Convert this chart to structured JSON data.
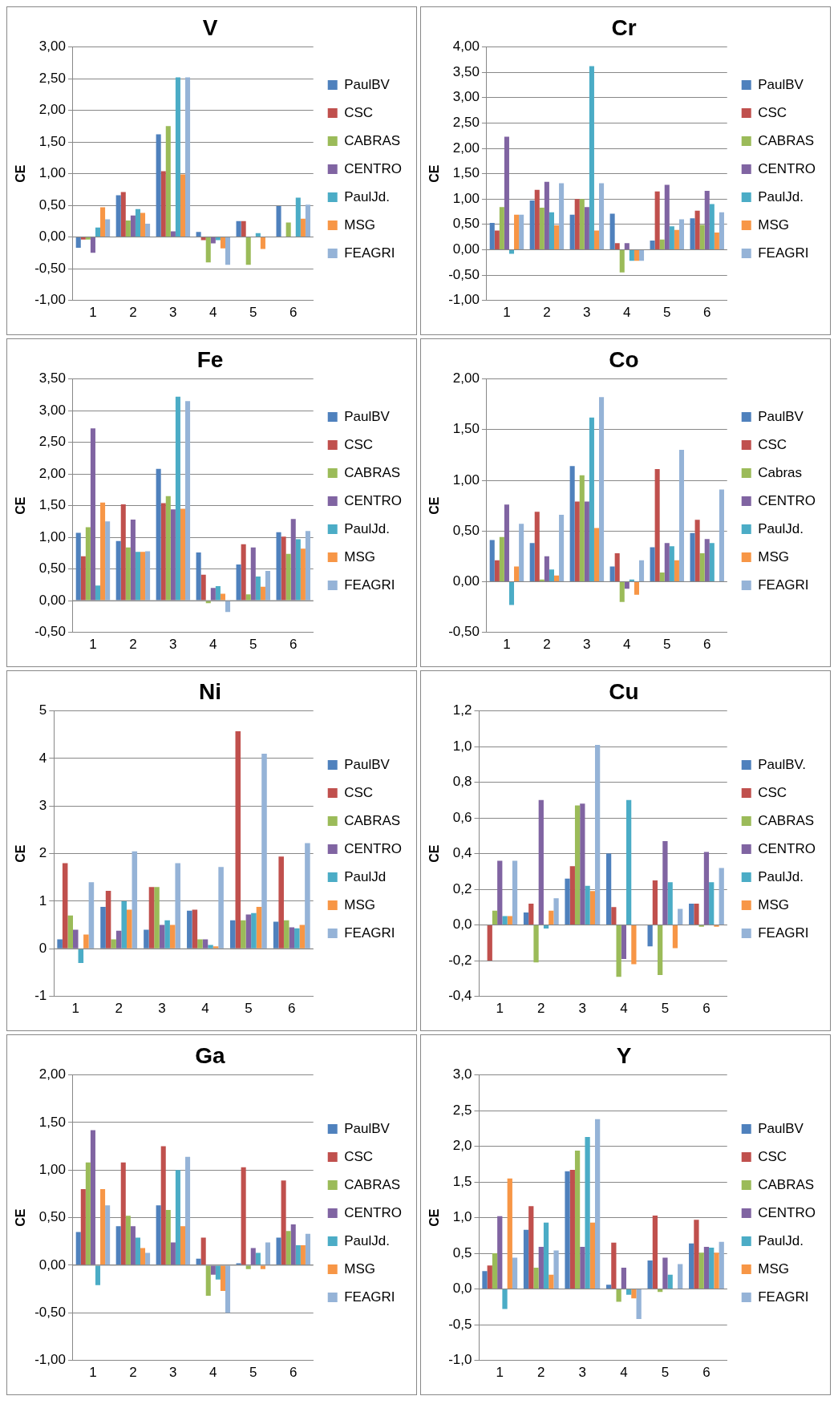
{
  "chart_data": [
    {
      "type": "bar",
      "title": "V",
      "ylabel": "CE",
      "categories": [
        "1",
        "2",
        "3",
        "4",
        "5",
        "6"
      ],
      "ylim": [
        -1,
        3
      ],
      "yticks": [
        {
          "value": -1,
          "label": "-1,00"
        },
        {
          "value": -0.5,
          "label": "-0,50"
        },
        {
          "value": 0,
          "label": "0,00"
        },
        {
          "value": 0.5,
          "label": "0,50"
        },
        {
          "value": 1,
          "label": "1,00"
        },
        {
          "value": 1.5,
          "label": "1,50"
        },
        {
          "value": 2,
          "label": "2,00"
        },
        {
          "value": 2.5,
          "label": "2,50"
        },
        {
          "value": 3,
          "label": "3,00"
        }
      ],
      "grid": "y",
      "legend": "right",
      "series": [
        {
          "name": "PaulBV",
          "color": "#4f81bd",
          "values": [
            -0.17,
            0.66,
            1.62,
            0.08,
            0.25,
            0.49
          ]
        },
        {
          "name": "CSC",
          "color": "#c0504d",
          "values": [
            -0.04,
            0.71,
            1.04,
            -0.05,
            0.25,
            0
          ]
        },
        {
          "name": "CABRAS",
          "color": "#9bbb59",
          "values": [
            -0.04,
            0.26,
            1.75,
            -0.4,
            -0.44,
            0.23
          ]
        },
        {
          "name": "CENTRO",
          "color": "#8064a2",
          "values": [
            -0.25,
            0.34,
            0.09,
            -0.1,
            0,
            0
          ]
        },
        {
          "name": "PaulJd.",
          "color": "#4bacc6",
          "values": [
            0.15,
            0.44,
            2.52,
            -0.05,
            0.06,
            0.62
          ]
        },
        {
          "name": "MSG",
          "color": "#f79646",
          "values": [
            0.47,
            0.38,
            0.99,
            -0.18,
            -0.19,
            0.29
          ]
        },
        {
          "name": "FEAGRI",
          "color": "#95b3d7",
          "values": [
            0.28,
            0.21,
            2.52,
            -0.44,
            0,
            0.51
          ]
        }
      ]
    },
    {
      "type": "bar",
      "title": "Cr",
      "ylabel": "CE",
      "categories": [
        "1",
        "2",
        "3",
        "4",
        "5",
        "6"
      ],
      "ylim": [
        -1,
        4
      ],
      "yticks": [
        {
          "value": -1,
          "label": "-1,00"
        },
        {
          "value": -0.5,
          "label": "-0,50"
        },
        {
          "value": 0,
          "label": "0,00"
        },
        {
          "value": 0.5,
          "label": "0,50"
        },
        {
          "value": 1,
          "label": "1,00"
        },
        {
          "value": 1.5,
          "label": "1,50"
        },
        {
          "value": 2,
          "label": "2,00"
        },
        {
          "value": 2.5,
          "label": "2,50"
        },
        {
          "value": 3,
          "label": "3,00"
        },
        {
          "value": 3.5,
          "label": "3,50"
        },
        {
          "value": 4,
          "label": "4,00"
        }
      ],
      "grid": "y",
      "legend": "right",
      "series": [
        {
          "name": "PaulBV",
          "color": "#4f81bd",
          "values": [
            0.53,
            0.97,
            0.69,
            0.71,
            0.18,
            0.62
          ]
        },
        {
          "name": "CSC",
          "color": "#c0504d",
          "values": [
            0.38,
            1.18,
            1.0,
            0.13,
            1.15,
            0.77
          ]
        },
        {
          "name": "CABRAS",
          "color": "#9bbb59",
          "values": [
            0.84,
            0.83,
            1.0,
            -0.45,
            0.2,
            0.49
          ]
        },
        {
          "name": "CENTRO",
          "color": "#8064a2",
          "values": [
            2.23,
            1.34,
            0.84,
            0.13,
            1.28,
            1.16
          ]
        },
        {
          "name": "PaulJd.",
          "color": "#4bacc6",
          "values": [
            -0.08,
            0.74,
            3.62,
            -0.22,
            0.46,
            0.9
          ]
        },
        {
          "name": "MSG",
          "color": "#f79646",
          "values": [
            0.69,
            0.48,
            0.38,
            -0.22,
            0.39,
            0.34
          ]
        },
        {
          "name": "FEAGRI",
          "color": "#95b3d7",
          "values": [
            0.69,
            1.31,
            1.31,
            -0.22,
            0.6,
            0.74
          ]
        }
      ]
    },
    {
      "type": "bar",
      "title": "Fe",
      "ylabel": "CE",
      "categories": [
        "1",
        "2",
        "3",
        "4",
        "5",
        "6"
      ],
      "ylim": [
        -0.5,
        3.5
      ],
      "yticks": [
        {
          "value": -0.5,
          "label": "-0,50"
        },
        {
          "value": 0,
          "label": "0,00"
        },
        {
          "value": 0.5,
          "label": "0,50"
        },
        {
          "value": 1,
          "label": "1,00"
        },
        {
          "value": 1.5,
          "label": "1,50"
        },
        {
          "value": 2,
          "label": "2,00"
        },
        {
          "value": 2.5,
          "label": "2,50"
        },
        {
          "value": 3,
          "label": "3,00"
        },
        {
          "value": 3.5,
          "label": "3,50"
        }
      ],
      "grid": "y",
      "legend": "right",
      "series": [
        {
          "name": "PaulBV",
          "color": "#4f81bd",
          "values": [
            1.07,
            0.94,
            2.08,
            0.76,
            0.57,
            1.08
          ]
        },
        {
          "name": "CSC",
          "color": "#c0504d",
          "values": [
            0.7,
            1.52,
            1.54,
            0.41,
            0.89,
            1.01
          ]
        },
        {
          "name": "CABRAS",
          "color": "#9bbb59",
          "values": [
            1.16,
            0.84,
            1.65,
            -0.04,
            0.1,
            0.74
          ]
        },
        {
          "name": "CENTRO",
          "color": "#8064a2",
          "values": [
            2.72,
            1.28,
            1.44,
            0.2,
            0.84,
            1.29
          ]
        },
        {
          "name": "PaulJd.",
          "color": "#4bacc6",
          "values": [
            0.24,
            0.77,
            3.22,
            0.23,
            0.38,
            0.97
          ]
        },
        {
          "name": "MSG",
          "color": "#f79646",
          "values": [
            1.55,
            0.77,
            1.45,
            0.11,
            0.22,
            0.82
          ]
        },
        {
          "name": "FEAGRI",
          "color": "#95b3d7",
          "values": [
            1.25,
            0.78,
            3.15,
            -0.18,
            0.47,
            1.1
          ]
        }
      ]
    },
    {
      "type": "bar",
      "title": "Co",
      "ylabel": "CE",
      "categories": [
        "1",
        "2",
        "3",
        "4",
        "5",
        "6"
      ],
      "ylim": [
        -0.5,
        2
      ],
      "yticks": [
        {
          "value": -0.5,
          "label": "-0,50"
        },
        {
          "value": 0,
          "label": "0,00"
        },
        {
          "value": 0.5,
          "label": "0,50"
        },
        {
          "value": 1,
          "label": "1,00"
        },
        {
          "value": 1.5,
          "label": "1,50"
        },
        {
          "value": 2,
          "label": "2,00"
        }
      ],
      "grid": "y",
      "legend": "right",
      "series": [
        {
          "name": "PaulBV",
          "color": "#4f81bd",
          "values": [
            0.41,
            0.38,
            1.14,
            0.15,
            0.34,
            0.48
          ]
        },
        {
          "name": "CSC",
          "color": "#c0504d",
          "values": [
            0.21,
            0.69,
            0.79,
            0.28,
            1.11,
            0.61
          ]
        },
        {
          "name": "Cabras",
          "color": "#9bbb59",
          "values": [
            0.44,
            0.02,
            1.05,
            -0.2,
            0.09,
            0.28
          ]
        },
        {
          "name": "CENTRO",
          "color": "#8064a2",
          "values": [
            0.76,
            0.25,
            0.79,
            -0.07,
            0.38,
            0.42
          ]
        },
        {
          "name": "PaulJd.",
          "color": "#4bacc6",
          "values": [
            -0.23,
            0.12,
            1.62,
            0.02,
            0.35,
            0.38
          ]
        },
        {
          "name": "MSG",
          "color": "#f79646",
          "values": [
            0.15,
            0.06,
            0.53,
            -0.13,
            0.21,
            0
          ]
        },
        {
          "name": "FEAGRI",
          "color": "#95b3d7",
          "values": [
            0.57,
            0.66,
            1.82,
            0.21,
            1.3,
            0.91
          ]
        }
      ]
    },
    {
      "type": "bar",
      "title": "Ni",
      "ylabel": "CE",
      "categories": [
        "1",
        "2",
        "3",
        "4",
        "5",
        "6"
      ],
      "ylim": [
        -1,
        5
      ],
      "yticks": [
        -1,
        0,
        1,
        2,
        3,
        4,
        5
      ],
      "grid": "y",
      "legend": "right",
      "series": [
        {
          "name": "PaulBV",
          "color": "#4f81bd",
          "values": [
            0.2,
            0.88,
            0.4,
            0.8,
            0.6,
            0.57
          ]
        },
        {
          "name": "CSC",
          "color": "#c0504d",
          "values": [
            1.8,
            1.22,
            1.3,
            0.82,
            4.57,
            1.94
          ]
        },
        {
          "name": "CABRAS",
          "color": "#9bbb59",
          "values": [
            0.7,
            0.2,
            1.3,
            0.2,
            0.6,
            0.6
          ]
        },
        {
          "name": "CENTRO",
          "color": "#8064a2",
          "values": [
            0.4,
            0.38,
            0.5,
            0.2,
            0.72,
            0.45
          ]
        },
        {
          "name": "PaulJd",
          "color": "#4bacc6",
          "values": [
            -0.3,
            1.0,
            0.6,
            0.08,
            0.75,
            0.43
          ]
        },
        {
          "name": "MSG",
          "color": "#f79646",
          "values": [
            0.3,
            0.82,
            0.5,
            0.05,
            0.88,
            0.5
          ]
        },
        {
          "name": "FEAGRI",
          "color": "#95b3d7",
          "values": [
            1.4,
            2.05,
            1.8,
            1.72,
            4.1,
            2.22
          ]
        }
      ]
    },
    {
      "type": "bar",
      "title": "Cu",
      "ylabel": "CE",
      "categories": [
        "1",
        "2",
        "3",
        "4",
        "5",
        "6"
      ],
      "ylim": [
        -0.4,
        1.2
      ],
      "yticks": [
        {
          "value": -0.4,
          "label": "-0,4"
        },
        {
          "value": -0.2,
          "label": "-0,2"
        },
        {
          "value": 0,
          "label": "0,0"
        },
        {
          "value": 0.2,
          "label": "0,2"
        },
        {
          "value": 0.4,
          "label": "0,4"
        },
        {
          "value": 0.6,
          "label": "0,6"
        },
        {
          "value": 0.8,
          "label": "0,8"
        },
        {
          "value": 1,
          "label": "1,0"
        },
        {
          "value": 1.2,
          "label": "1,2"
        }
      ],
      "grid": "y",
      "legend": "right",
      "series": [
        {
          "name": "PaulBV.",
          "color": "#4f81bd",
          "values": [
            0,
            0.07,
            0.26,
            0.4,
            -0.12,
            0.12
          ]
        },
        {
          "name": "CSC",
          "color": "#c0504d",
          "values": [
            -0.2,
            0.12,
            0.33,
            0.1,
            0.25,
            0.12
          ]
        },
        {
          "name": "CABRAS",
          "color": "#9bbb59",
          "values": [
            0.08,
            -0.21,
            0.67,
            -0.29,
            -0.28,
            -0.01
          ]
        },
        {
          "name": "CENTRO",
          "color": "#8064a2",
          "values": [
            0.36,
            0.7,
            0.68,
            -0.19,
            0.47,
            0.41
          ]
        },
        {
          "name": "PaulJd.",
          "color": "#4bacc6",
          "values": [
            0.05,
            -0.02,
            0.22,
            0.7,
            0.24,
            0.24
          ]
        },
        {
          "name": "MSG",
          "color": "#f79646",
          "values": [
            0.05,
            0.08,
            0.19,
            -0.22,
            -0.13,
            -0.01
          ]
        },
        {
          "name": "FEAGRI",
          "color": "#95b3d7",
          "values": [
            0.36,
            0.15,
            1.01,
            0,
            0.09,
            0.32
          ]
        }
      ]
    },
    {
      "type": "bar",
      "title": "Ga",
      "ylabel": "CE",
      "categories": [
        "1",
        "2",
        "3",
        "4",
        "5",
        "6"
      ],
      "ylim": [
        -1,
        2
      ],
      "yticks": [
        {
          "value": -1,
          "label": "-1,00"
        },
        {
          "value": -0.5,
          "label": "-0,50"
        },
        {
          "value": 0,
          "label": "0,00"
        },
        {
          "value": 0.5,
          "label": "0,50"
        },
        {
          "value": 1,
          "label": "1,00"
        },
        {
          "value": 1.5,
          "label": "1,50"
        },
        {
          "value": 2,
          "label": "2,00"
        }
      ],
      "grid": "y",
      "legend": "right",
      "series": [
        {
          "name": "PaulBV",
          "color": "#4f81bd",
          "values": [
            0.35,
            0.41,
            0.63,
            0.07,
            0.02,
            0.29
          ]
        },
        {
          "name": "CSC",
          "color": "#c0504d",
          "values": [
            0.8,
            1.08,
            1.25,
            0.29,
            1.03,
            0.89
          ]
        },
        {
          "name": "CABRAS",
          "color": "#9bbb59",
          "values": [
            1.08,
            0.52,
            0.58,
            -0.32,
            -0.04,
            0.36
          ]
        },
        {
          "name": "CENTRO",
          "color": "#8064a2",
          "values": [
            1.42,
            0.41,
            0.24,
            -0.1,
            0.18,
            0.43
          ]
        },
        {
          "name": "PaulJd.",
          "color": "#4bacc6",
          "values": [
            -0.21,
            0.29,
            1.0,
            -0.15,
            0.13,
            0.21
          ]
        },
        {
          "name": "MSG",
          "color": "#f79646",
          "values": [
            0.8,
            0.18,
            0.41,
            -0.27,
            -0.04,
            0.21
          ]
        },
        {
          "name": "FEAGRI",
          "color": "#95b3d7",
          "values": [
            0.63,
            0.13,
            1.14,
            -0.5,
            0.24,
            0.33
          ]
        }
      ]
    },
    {
      "type": "bar",
      "title": "Y",
      "ylabel": "CE",
      "categories": [
        "1",
        "2",
        "3",
        "4",
        "5",
        "6"
      ],
      "ylim": [
        -1,
        3
      ],
      "yticks": [
        {
          "value": -1,
          "label": "-1,0"
        },
        {
          "value": -0.5,
          "label": "-0,5"
        },
        {
          "value": 0,
          "label": "0,0"
        },
        {
          "value": 0.5,
          "label": "0,5"
        },
        {
          "value": 1,
          "label": "1,0"
        },
        {
          "value": 1.5,
          "label": "1,5"
        },
        {
          "value": 2,
          "label": "2,0"
        },
        {
          "value": 2.5,
          "label": "2,5"
        },
        {
          "value": 3,
          "label": "3,0"
        }
      ],
      "grid": "y",
      "legend": "right",
      "series": [
        {
          "name": "PaulBV",
          "color": "#4f81bd",
          "values": [
            0.25,
            0.83,
            1.65,
            0.06,
            0.4,
            0.64
          ]
        },
        {
          "name": "CSC",
          "color": "#c0504d",
          "values": [
            0.33,
            1.16,
            1.67,
            0.65,
            1.03,
            0.97
          ]
        },
        {
          "name": "CABRAS",
          "color": "#9bbb59",
          "values": [
            0.5,
            0.3,
            1.94,
            -0.18,
            -0.04,
            0.51
          ]
        },
        {
          "name": "CENTRO",
          "color": "#8064a2",
          "values": [
            1.02,
            0.59,
            0.59,
            0.3,
            0.44,
            0.59
          ]
        },
        {
          "name": "PaulJd.",
          "color": "#4bacc6",
          "values": [
            -0.28,
            0.93,
            2.13,
            -0.08,
            0.2,
            0.58
          ]
        },
        {
          "name": "MSG",
          "color": "#f79646",
          "values": [
            1.55,
            0.2,
            0.93,
            -0.13,
            0,
            0.51
          ]
        },
        {
          "name": "FEAGRI",
          "color": "#95b3d7",
          "values": [
            0.44,
            0.54,
            2.38,
            -0.42,
            0.35,
            0.66
          ]
        }
      ]
    }
  ]
}
